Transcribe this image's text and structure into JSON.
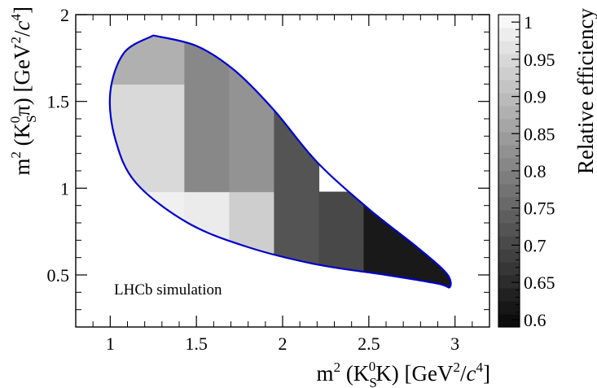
{
  "chart_data": {
    "type": "heatmap",
    "title": "",
    "annotation": "LHCb simulation",
    "xlabel_parts": {
      "pre": "m",
      "sup2": "2",
      "paren_open": " (K",
      "sub": "S",
      "sup0": "0",
      "post": "K) [GeV",
      "sup_unit": "2",
      "slash": "/",
      "c": "c",
      "sup_c": "4",
      "close": "]"
    },
    "ylabel_parts": {
      "pre": "m",
      "sup2": "2",
      "paren_open": " (K",
      "sub": "S",
      "sup0": "0",
      "post": "π) [GeV",
      "sup_unit": "2",
      "slash": "/",
      "c": "c",
      "sup_c": "4",
      "close": "]"
    },
    "xlim": [
      0.8,
      3.2
    ],
    "ylim": [
      0.2,
      2.0
    ],
    "x_ticks": [
      "1",
      "1.5",
      "2",
      "2.5",
      "3"
    ],
    "x_tick_values": [
      1.0,
      1.5,
      2.0,
      2.5,
      3.0
    ],
    "y_ticks": [
      "0.5",
      "1",
      "1.5",
      "2"
    ],
    "y_tick_values": [
      0.5,
      1.0,
      1.5,
      2.0
    ],
    "colorbar": {
      "label": "Relative efficiency",
      "range": [
        0.59,
        1.01
      ],
      "ticks": [
        "0.6",
        "0.65",
        "0.7",
        "0.75",
        "0.8",
        "0.85",
        "0.9",
        "0.95",
        "1"
      ],
      "tick_values": [
        0.6,
        0.65,
        0.7,
        0.75,
        0.8,
        0.85,
        0.9,
        0.95,
        1.0
      ],
      "gradient": "grayscale"
    },
    "x_bin_edges": [
      0.9,
      1.43,
      1.69,
      1.95,
      2.21,
      2.47,
      3.0
    ],
    "y_bin_edges": [
      0.4,
      0.67,
      0.98,
      1.29,
      1.6,
      1.9
    ],
    "cells": [
      {
        "xi": 0,
        "yi": 0,
        "value": 0.99
      },
      {
        "xi": 1,
        "yi": 0,
        "value": 0.98
      },
      {
        "xi": 2,
        "yi": 0,
        "value": 0.93
      },
      {
        "xi": 3,
        "yi": 0,
        "value": 0.72
      },
      {
        "xi": 4,
        "yi": 0,
        "value": 0.7
      },
      {
        "xi": 5,
        "yi": 0,
        "value": 0.62
      },
      {
        "xi": 0,
        "yi": 1,
        "value": 0.99
      },
      {
        "xi": 1,
        "yi": 1,
        "value": 0.98
      },
      {
        "xi": 2,
        "yi": 1,
        "value": 0.93
      },
      {
        "xi": 3,
        "yi": 1,
        "value": 0.72
      },
      {
        "xi": 4,
        "yi": 1,
        "value": 0.7
      },
      {
        "xi": 5,
        "yi": 1,
        "value": 0.62
      },
      {
        "xi": 0,
        "yi": 2,
        "value": 0.95
      },
      {
        "xi": 1,
        "yi": 2,
        "value": 0.81
      },
      {
        "xi": 2,
        "yi": 2,
        "value": 0.83
      },
      {
        "xi": 3,
        "yi": 2,
        "value": 0.72
      },
      {
        "xi": 0,
        "yi": 3,
        "value": 0.95
      },
      {
        "xi": 1,
        "yi": 3,
        "value": 0.81
      },
      {
        "xi": 2,
        "yi": 3,
        "value": 0.83
      },
      {
        "xi": 3,
        "yi": 3,
        "value": 0.72
      },
      {
        "xi": 0,
        "yi": 4,
        "value": 0.88
      },
      {
        "xi": 1,
        "yi": 4,
        "value": 0.81
      },
      {
        "xi": 2,
        "yi": 4,
        "value": 0.83
      }
    ],
    "boundary_color": "#0000cc",
    "boundary_contour": [
      [
        1.25,
        1.88
      ],
      [
        1.08,
        1.78
      ],
      [
        1.0,
        1.55
      ],
      [
        1.03,
        1.28
      ],
      [
        1.15,
        1.03
      ],
      [
        1.45,
        0.8
      ],
      [
        1.8,
        0.66
      ],
      [
        2.2,
        0.56
      ],
      [
        2.6,
        0.5
      ],
      [
        2.9,
        0.45
      ],
      [
        2.97,
        0.43
      ],
      [
        2.95,
        0.51
      ],
      [
        2.78,
        0.66
      ],
      [
        2.5,
        0.88
      ],
      [
        2.2,
        1.15
      ],
      [
        1.95,
        1.45
      ],
      [
        1.72,
        1.68
      ],
      [
        1.5,
        1.82
      ],
      [
        1.25,
        1.88
      ]
    ]
  }
}
